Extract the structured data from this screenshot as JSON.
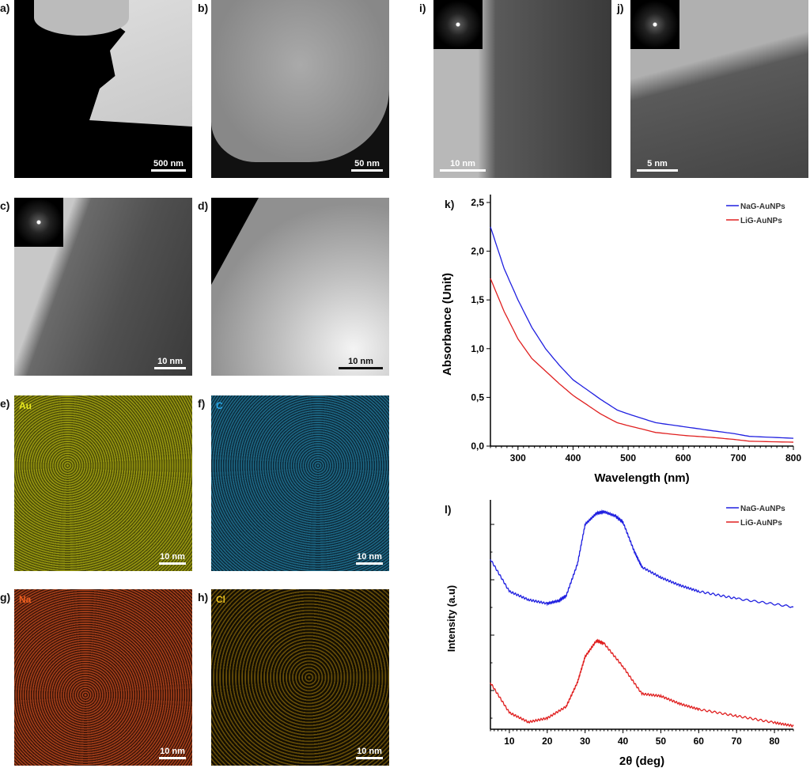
{
  "panels": [
    {
      "id": "a",
      "label": "a)",
      "scale": "500 nm"
    },
    {
      "id": "b",
      "label": "b)",
      "scale": "50 nm"
    },
    {
      "id": "c",
      "label": "c)",
      "scale": "10 nm"
    },
    {
      "id": "d",
      "label": "d)",
      "scale": "10 nm"
    },
    {
      "id": "e",
      "label": "e)",
      "scale": "10 nm",
      "element": "Au",
      "color": "#d8d800"
    },
    {
      "id": "f",
      "label": "f)",
      "scale": "10 nm",
      "element": "C",
      "color": "#2aa8d8"
    },
    {
      "id": "g",
      "label": "g)",
      "scale": "10 nm",
      "element": "Na",
      "color": "#e0501a"
    },
    {
      "id": "h",
      "label": "h)",
      "scale": "10 nm",
      "element": "Cl",
      "color": "#e0b010"
    },
    {
      "id": "i",
      "label": "i)",
      "scale": "10 nm"
    },
    {
      "id": "j",
      "label": "j)",
      "scale": "5 nm"
    }
  ],
  "chart_data": [
    {
      "panel_label": "k)",
      "type": "line",
      "xlabel": "Wavelength (nm)",
      "ylabel": "Absorbance (Unit)",
      "xlim": [
        250,
        800
      ],
      "ylim": [
        0,
        2.5
      ],
      "xticks": [
        "300",
        "400",
        "500",
        "600",
        "700",
        "800"
      ],
      "yticks": [
        "0,0",
        "0,5",
        "1,0",
        "1,5",
        "2,0",
        "2,5"
      ],
      "legend": "top-right",
      "series": [
        {
          "name": "NaG-AuNPs",
          "color": "#2020e0",
          "x": [
            250,
            275,
            300,
            325,
            350,
            375,
            400,
            450,
            480,
            500,
            550,
            600,
            650,
            690,
            720,
            800
          ],
          "y": [
            2.25,
            1.82,
            1.5,
            1.22,
            1.0,
            0.83,
            0.68,
            0.48,
            0.37,
            0.33,
            0.24,
            0.2,
            0.16,
            0.13,
            0.1,
            0.08
          ]
        },
        {
          "name": "LiG-AuNPs",
          "color": "#e02020",
          "x": [
            250,
            275,
            300,
            325,
            350,
            375,
            400,
            450,
            480,
            500,
            550,
            600,
            650,
            690,
            720,
            800
          ],
          "y": [
            1.72,
            1.38,
            1.1,
            0.9,
            0.77,
            0.64,
            0.52,
            0.33,
            0.24,
            0.21,
            0.14,
            0.11,
            0.09,
            0.07,
            0.05,
            0.04
          ]
        }
      ]
    },
    {
      "panel_label": "l)",
      "type": "line",
      "xlabel": "2θ (deg)",
      "ylabel": "Intensity (a.u)",
      "xlim": [
        5,
        85
      ],
      "ylim": [
        0.3,
        4.3
      ],
      "xticks": [
        "10",
        "20",
        "30",
        "40",
        "50",
        "60",
        "70",
        "80"
      ],
      "legend": "top-right",
      "series": [
        {
          "name": "NaG-AuNPs",
          "color": "#2020e0",
          "x": [
            5,
            10,
            15,
            20,
            23,
            25,
            28,
            30,
            33,
            35,
            38,
            40,
            43,
            45,
            50,
            55,
            60,
            70,
            85
          ],
          "y": [
            3.37,
            2.79,
            2.64,
            2.57,
            2.62,
            2.71,
            3.29,
            4.0,
            4.2,
            4.23,
            4.15,
            4.04,
            3.51,
            3.23,
            3.04,
            2.9,
            2.79,
            2.66,
            2.51
          ]
        },
        {
          "name": "LiG-AuNPs",
          "color": "#e02020",
          "x": [
            5,
            10,
            15,
            20,
            25,
            28,
            30,
            33,
            35,
            40,
            45,
            50,
            55,
            60,
            70,
            80,
            85
          ],
          "y": [
            1.14,
            0.6,
            0.43,
            0.5,
            0.71,
            1.15,
            1.61,
            1.9,
            1.85,
            1.43,
            0.94,
            0.9,
            0.76,
            0.66,
            0.54,
            0.42,
            0.36
          ]
        }
      ]
    }
  ]
}
